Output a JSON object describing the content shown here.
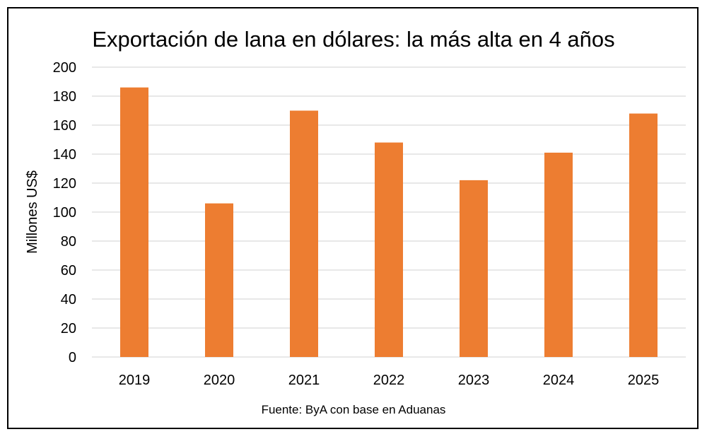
{
  "chart_data": {
    "type": "bar",
    "title": "Exportación de lana en dólares: la más alta en 4 años",
    "ylabel": "Millones US$",
    "xlabel": "",
    "categories": [
      "2019",
      "2020",
      "2021",
      "2022",
      "2023",
      "2024",
      "2025"
    ],
    "values": [
      186,
      106,
      170,
      148,
      122,
      141,
      168
    ],
    "ylim": [
      0,
      200
    ],
    "yticks": [
      0,
      20,
      40,
      60,
      80,
      100,
      120,
      140,
      160,
      180,
      200
    ],
    "grid": true,
    "legend": "none",
    "bar_color": "#ED7D31",
    "grid_color": "#D9D9D9",
    "source": "Fuente: ByA con base en Aduanas"
  }
}
